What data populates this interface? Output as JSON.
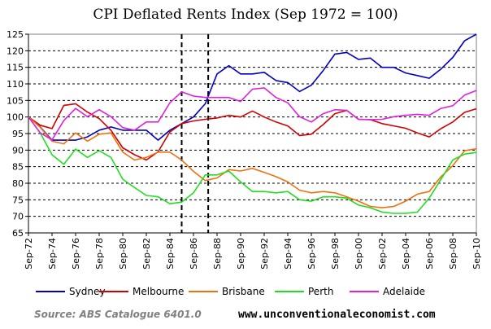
{
  "chart_data": {
    "type": "line",
    "title": "CPI Deflated Rents Index (Sep 1972 = 100)",
    "xlabel": "",
    "ylabel": "",
    "ylim": [
      65,
      125
    ],
    "yticks": [
      65,
      70,
      75,
      80,
      85,
      90,
      95,
      100,
      105,
      110,
      115,
      120,
      125
    ],
    "xlim": [
      "Sep-72",
      "Sep-10"
    ],
    "xtick_labels": [
      "Sep-72",
      "Sep-74",
      "Sep-76",
      "Sep-78",
      "Sep-80",
      "Sep-82",
      "Sep-84",
      "Sep-86",
      "Sep-88",
      "Sep-90",
      "Sep-92",
      "Sep-94",
      "Sep-96",
      "Sep-98",
      "Sep-00",
      "Sep-02",
      "Sep-04",
      "Sep-06",
      "Sep-08",
      "Sep-10"
    ],
    "grid": "horizontal dashed",
    "legend_position": "bottom",
    "vertical_markers": [
      "Sep-85",
      "Dec-87"
    ],
    "x": [
      "Sep-72",
      "Sep-73",
      "Sep-74",
      "Sep-75",
      "Sep-76",
      "Sep-77",
      "Sep-78",
      "Sep-79",
      "Sep-80",
      "Sep-81",
      "Sep-82",
      "Sep-83",
      "Sep-84",
      "Sep-85",
      "Sep-86",
      "Sep-87",
      "Sep-88",
      "Sep-89",
      "Sep-90",
      "Sep-91",
      "Sep-92",
      "Sep-93",
      "Sep-94",
      "Sep-95",
      "Sep-96",
      "Sep-97",
      "Sep-98",
      "Sep-99",
      "Sep-00",
      "Sep-01",
      "Sep-02",
      "Sep-03",
      "Sep-04",
      "Sep-05",
      "Sep-06",
      "Sep-07",
      "Sep-08",
      "Sep-09",
      "Sep-10"
    ],
    "series": [
      {
        "name": "Sydney",
        "color": "#0000c0",
        "values": [
          100,
          97,
          93,
          93,
          93,
          94,
          96,
          97,
          96,
          96,
          96,
          93,
          96,
          98,
          100,
          104,
          113,
          115.5,
          113,
          113,
          113.5,
          111,
          110.4,
          107.7,
          109.6,
          114,
          119,
          119.5,
          117.4,
          117.8,
          115,
          115,
          113.3,
          112.5,
          111.7,
          114.5,
          118,
          123,
          125
        ]
      },
      {
        "name": "Melbourne",
        "color": "#d00000",
        "values": [
          100,
          97.5,
          96.5,
          103.5,
          104,
          101.5,
          99.5,
          96,
          90.7,
          88.6,
          87,
          89.5,
          95.5,
          98,
          98.8,
          99.3,
          99.7,
          100.5,
          100,
          101.8,
          100,
          98.5,
          97.3,
          94.4,
          94.8,
          97.7,
          101,
          102,
          99.3,
          99.2,
          98,
          97.3,
          96.6,
          95.2,
          94,
          96.5,
          98.5,
          101.4,
          102.5
        ]
      },
      {
        "name": "Brisbane",
        "color": "#f07010",
        "values": [
          100,
          96.9,
          92.7,
          91.9,
          95.2,
          92.7,
          94.8,
          95.2,
          89.4,
          87,
          87.8,
          89.4,
          89.4,
          87,
          83.6,
          80.8,
          81.6,
          84.1,
          83.7,
          84.5,
          83.3,
          82,
          80.4,
          77.9,
          77.1,
          77.5,
          77.1,
          75.9,
          74.6,
          73,
          72.6,
          73,
          74.6,
          76.7,
          77.5,
          82,
          85.3,
          89.8,
          90.4
        ]
      },
      {
        "name": "Perth",
        "color": "#22dd22",
        "values": [
          100,
          95.2,
          88.6,
          85.7,
          90.3,
          87.8,
          89.8,
          87.8,
          81.2,
          78.7,
          76.3,
          75.9,
          73.8,
          74.3,
          77.1,
          82.5,
          82.5,
          83.7,
          80.4,
          77.5,
          77.5,
          77.1,
          77.5,
          75,
          74.6,
          75.9,
          75.9,
          75.5,
          73.4,
          72.6,
          71.3,
          70.9,
          70.9,
          71.3,
          75.5,
          81.2,
          87,
          88.8,
          89.3
        ]
      },
      {
        "name": "Adelaide",
        "color": "#e020e0",
        "values": [
          100,
          95.2,
          93.1,
          98.9,
          102.6,
          100.1,
          102.2,
          100.1,
          96.8,
          96,
          98.5,
          98.5,
          104.3,
          107.6,
          106.3,
          105.9,
          105.9,
          105.9,
          104.7,
          108.4,
          108.8,
          105.9,
          104.3,
          100.1,
          98.5,
          101,
          102.2,
          102,
          99.3,
          99.2,
          99.3,
          100.1,
          100.5,
          100.8,
          100.5,
          102.6,
          103.4,
          106.6,
          108
        ]
      }
    ]
  },
  "footer": {
    "source": "Source: ABS Catalogue 6401.0",
    "website": "www.unconventionaleconomist.com"
  }
}
